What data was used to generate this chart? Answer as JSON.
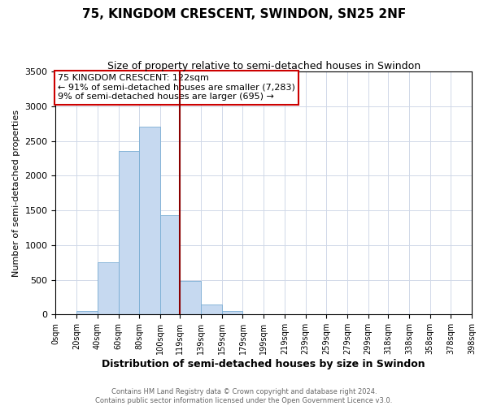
{
  "title": "75, KINGDOM CRESCENT, SWINDON, SN25 2NF",
  "subtitle": "Size of property relative to semi-detached houses in Swindon",
  "xlabel": "Distribution of semi-detached houses by size in Swindon",
  "ylabel": "Number of semi-detached properties",
  "annotation_title": "75 KINGDOM CRESCENT: 122sqm",
  "annotation_line1": "← 91% of semi-detached houses are smaller (7,283)",
  "annotation_line2": "9% of semi-detached houses are larger (695) →",
  "footnote1": "Contains HM Land Registry data © Crown copyright and database right 2024.",
  "footnote2": "Contains public sector information licensed under the Open Government Licence v3.0.",
  "bar_edges": [
    0,
    20,
    40,
    60,
    80,
    100,
    119,
    139,
    159,
    179,
    199,
    219,
    239,
    259,
    279,
    299,
    318,
    338,
    358,
    378,
    398
  ],
  "bar_heights": [
    0,
    50,
    750,
    2350,
    2700,
    1430,
    480,
    150,
    50,
    0,
    0,
    0,
    0,
    0,
    0,
    0,
    0,
    0,
    0,
    0
  ],
  "bar_color": "#c6d9f0",
  "bar_edge_color": "#7aadd4",
  "property_line_x": 119,
  "property_line_color": "#8B0000",
  "annotation_box_facecolor": "#ffffff",
  "annotation_box_edgecolor": "#cc0000",
  "grid_color": "#d0d8e8",
  "ylim": [
    0,
    3500
  ],
  "xlim": [
    0,
    398
  ],
  "title_fontsize": 11,
  "subtitle_fontsize": 9,
  "xlabel_fontsize": 9,
  "ylabel_fontsize": 8,
  "tick_fontsize": 7,
  "tick_labels": [
    "0sqm",
    "20sqm",
    "40sqm",
    "60sqm",
    "80sqm",
    "100sqm",
    "119sqm",
    "139sqm",
    "159sqm",
    "179sqm",
    "199sqm",
    "219sqm",
    "239sqm",
    "259sqm",
    "279sqm",
    "299sqm",
    "318sqm",
    "338sqm",
    "358sqm",
    "378sqm",
    "398sqm"
  ],
  "footnote_fontsize": 6,
  "footnote_color": "#666666"
}
